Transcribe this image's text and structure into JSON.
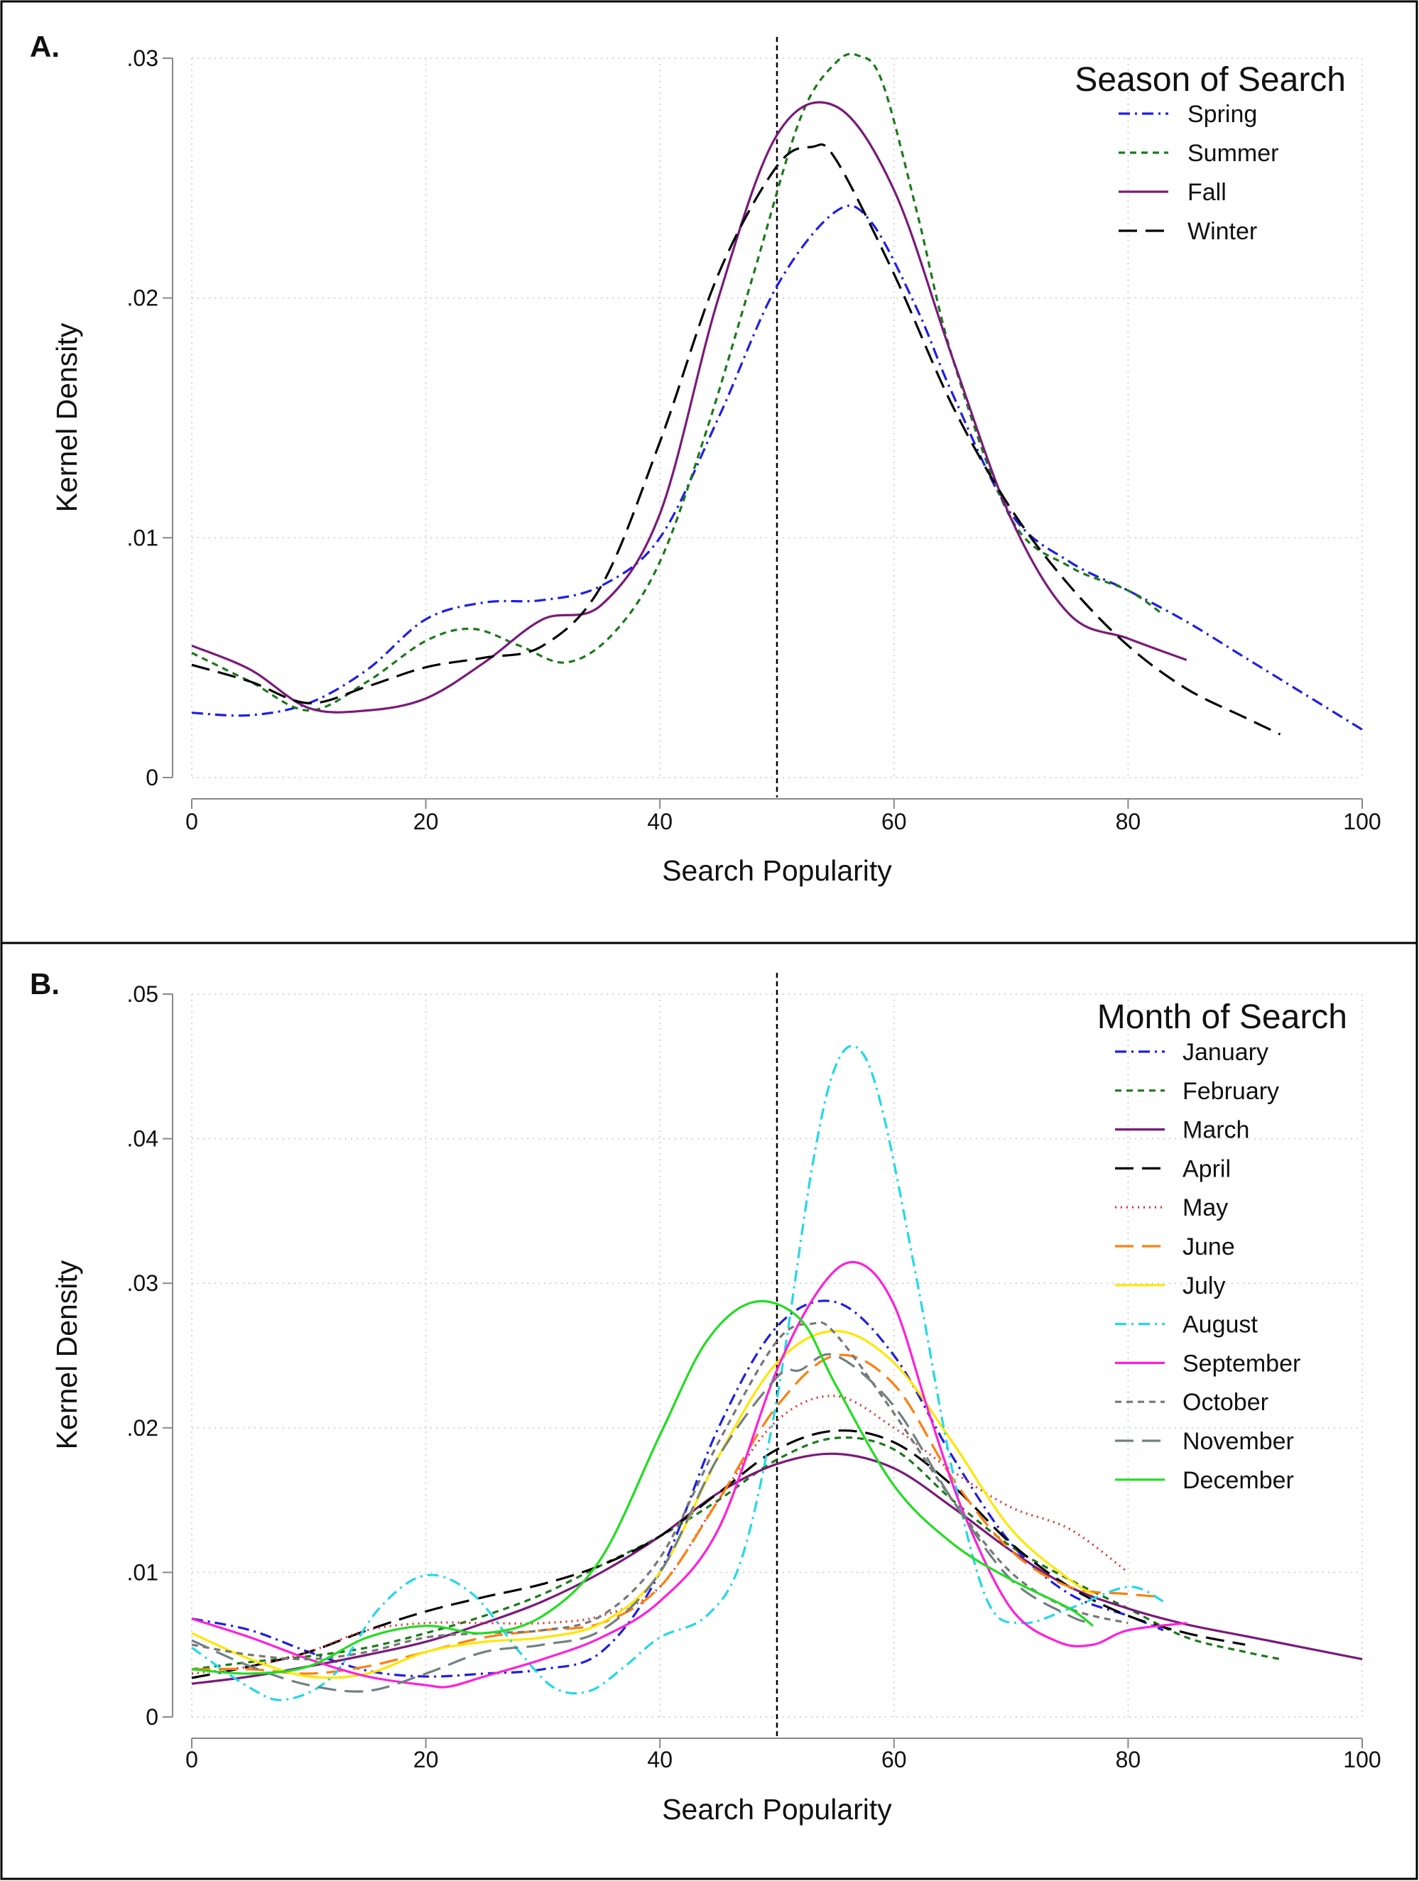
{
  "chart_data": [
    {
      "type": "line",
      "panel_label": "A.",
      "xlabel": "Search Popularity",
      "ylabel": "Kernel Density",
      "xlim": [
        0,
        100
      ],
      "ylim": [
        0,
        0.03
      ],
      "x_ticks": [
        0,
        20,
        40,
        60,
        80,
        100
      ],
      "x_tick_labels": [
        "0",
        "20",
        "40",
        "60",
        "80",
        "100"
      ],
      "y_ticks": [
        0,
        0.01,
        0.02,
        0.03
      ],
      "y_tick_labels": [
        "0",
        ".01",
        ".02",
        ".03"
      ],
      "grid": true,
      "reference_line_x": 50,
      "legend": {
        "title": "Season of Search",
        "position": "top-right"
      },
      "series": [
        {
          "name": "Spring",
          "color": "#1f1fe0",
          "dash": "dashdot",
          "x": [
            0,
            5,
            10,
            15,
            20,
            25,
            30,
            35,
            40,
            45,
            50,
            55,
            58,
            62,
            65,
            70,
            75,
            80,
            85,
            90,
            95,
            100
          ],
          "y": [
            0.0027,
            0.0026,
            0.0031,
            0.0045,
            0.0066,
            0.0073,
            0.0074,
            0.008,
            0.01,
            0.015,
            0.0205,
            0.0236,
            0.0232,
            0.0195,
            0.016,
            0.011,
            0.009,
            0.0078,
            0.0065,
            0.005,
            0.0035,
            0.002
          ]
        },
        {
          "name": "Summer",
          "color": "#1a7a1a",
          "dash": "short",
          "x": [
            0,
            5,
            10,
            15,
            20,
            24,
            28,
            32,
            36,
            40,
            44,
            48,
            52,
            55,
            57,
            59,
            62,
            65,
            70,
            75,
            80,
            83
          ],
          "y": [
            0.0052,
            0.004,
            0.0028,
            0.004,
            0.0057,
            0.0062,
            0.0055,
            0.0048,
            0.006,
            0.009,
            0.0145,
            0.021,
            0.0275,
            0.0298,
            0.0301,
            0.029,
            0.0235,
            0.0175,
            0.0108,
            0.0088,
            0.0078,
            0.0068
          ]
        },
        {
          "name": "Fall",
          "color": "#7a1a7a",
          "dash": "solid",
          "x": [
            0,
            5,
            10,
            15,
            20,
            25,
            30,
            35,
            40,
            45,
            50,
            55,
            60,
            65,
            70,
            75,
            80,
            85
          ],
          "y": [
            0.0055,
            0.0045,
            0.0029,
            0.0028,
            0.0033,
            0.0048,
            0.0066,
            0.0072,
            0.011,
            0.02,
            0.0268,
            0.028,
            0.0245,
            0.0175,
            0.0108,
            0.0068,
            0.0058,
            0.0049
          ]
        },
        {
          "name": "Winter",
          "color": "#000000",
          "dash": "long",
          "x": [
            0,
            5,
            10,
            15,
            20,
            25,
            30,
            35,
            40,
            45,
            50,
            53,
            55,
            60,
            65,
            70,
            75,
            80,
            85,
            90,
            93
          ],
          "y": [
            0.0047,
            0.004,
            0.0031,
            0.0038,
            0.0046,
            0.005,
            0.0055,
            0.008,
            0.014,
            0.021,
            0.0255,
            0.0263,
            0.0258,
            0.021,
            0.0155,
            0.0112,
            0.008,
            0.0055,
            0.0037,
            0.0025,
            0.0018
          ]
        }
      ]
    },
    {
      "type": "line",
      "panel_label": "B.",
      "xlabel": "Search Popularity",
      "ylabel": "Kernel Density",
      "xlim": [
        0,
        100
      ],
      "ylim": [
        0,
        0.05
      ],
      "x_ticks": [
        0,
        20,
        40,
        60,
        80,
        100
      ],
      "x_tick_labels": [
        "0",
        "20",
        "40",
        "60",
        "80",
        "100"
      ],
      "y_ticks": [
        0,
        0.01,
        0.02,
        0.03,
        0.04,
        0.05
      ],
      "y_tick_labels": [
        "0",
        ".01",
        ".02",
        ".03",
        ".04",
        ".05"
      ],
      "grid": true,
      "reference_line_x": 50,
      "legend": {
        "title": "Month of Search",
        "position": "top-right"
      },
      "series": [
        {
          "name": "January",
          "color": "#1f1fe0",
          "dash": "dashdot",
          "x": [
            0,
            5,
            10,
            15,
            20,
            25,
            30,
            35,
            40,
            45,
            50,
            55,
            60,
            65,
            70,
            75,
            80,
            83
          ],
          "y": [
            0.0068,
            0.006,
            0.0045,
            0.0032,
            0.0028,
            0.003,
            0.0033,
            0.0045,
            0.01,
            0.02,
            0.027,
            0.0287,
            0.025,
            0.018,
            0.012,
            0.0085,
            0.007,
            0.006
          ]
        },
        {
          "name": "February",
          "color": "#1a7a1a",
          "dash": "short",
          "x": [
            0,
            5,
            10,
            15,
            20,
            25,
            30,
            35,
            40,
            45,
            50,
            55,
            60,
            65,
            70,
            75,
            80,
            85,
            90,
            93
          ],
          "y": [
            0.0033,
            0.0038,
            0.0042,
            0.0048,
            0.0058,
            0.007,
            0.0085,
            0.0105,
            0.0125,
            0.015,
            0.0178,
            0.0193,
            0.0185,
            0.015,
            0.0118,
            0.0095,
            0.0075,
            0.0055,
            0.0045,
            0.004
          ]
        },
        {
          "name": "March",
          "color": "#7a1a7a",
          "dash": "solid",
          "x": [
            0,
            5,
            10,
            15,
            20,
            25,
            30,
            35,
            40,
            45,
            50,
            55,
            60,
            65,
            70,
            75,
            80,
            85,
            90,
            95,
            100
          ],
          "y": [
            0.0023,
            0.0028,
            0.0035,
            0.0043,
            0.0052,
            0.0065,
            0.008,
            0.01,
            0.0125,
            0.0155,
            0.0175,
            0.0182,
            0.0172,
            0.0145,
            0.0115,
            0.009,
            0.0075,
            0.0064,
            0.0056,
            0.0048,
            0.004
          ]
        },
        {
          "name": "April",
          "color": "#000000",
          "dash": "long",
          "x": [
            0,
            5,
            10,
            15,
            20,
            25,
            30,
            35,
            40,
            45,
            50,
            55,
            60,
            65,
            70,
            75,
            80,
            85,
            90
          ],
          "y": [
            0.0027,
            0.0035,
            0.0045,
            0.006,
            0.0073,
            0.0083,
            0.0092,
            0.0105,
            0.0125,
            0.0155,
            0.0185,
            0.0198,
            0.019,
            0.016,
            0.012,
            0.009,
            0.007,
            0.0058,
            0.005
          ]
        },
        {
          "name": "May",
          "color": "#e03030",
          "dash": "dot",
          "x": [
            0,
            5,
            10,
            15,
            20,
            25,
            30,
            35,
            40,
            45,
            50,
            55,
            60,
            65,
            70,
            75,
            80
          ],
          "y": [
            0.003,
            0.0035,
            0.0045,
            0.006,
            0.0065,
            0.0065,
            0.0065,
            0.007,
            0.009,
            0.015,
            0.0205,
            0.0222,
            0.02,
            0.017,
            0.0145,
            0.013,
            0.01
          ]
        },
        {
          "name": "June",
          "color": "#ff7f0e",
          "dash": "long",
          "x": [
            0,
            5,
            10,
            15,
            20,
            25,
            30,
            35,
            40,
            45,
            50,
            55,
            60,
            65,
            70,
            75,
            80,
            83
          ],
          "y": [
            0.0033,
            0.0033,
            0.003,
            0.0035,
            0.0045,
            0.0055,
            0.006,
            0.0065,
            0.009,
            0.015,
            0.0215,
            0.025,
            0.023,
            0.0165,
            0.0115,
            0.009,
            0.0085,
            0.0083
          ]
        },
        {
          "name": "July",
          "color": "#ffe600",
          "dash": "solid",
          "x": [
            0,
            5,
            10,
            15,
            20,
            25,
            30,
            35,
            40,
            45,
            50,
            55,
            60,
            65,
            70,
            75,
            77
          ],
          "y": [
            0.0058,
            0.004,
            0.0028,
            0.003,
            0.0045,
            0.0052,
            0.0055,
            0.0065,
            0.01,
            0.018,
            0.0245,
            0.0267,
            0.0245,
            0.019,
            0.013,
            0.0095,
            0.0085
          ]
        },
        {
          "name": "August",
          "color": "#22d8e8",
          "dash": "dashdot",
          "x": [
            0,
            5,
            8,
            12,
            16,
            20,
            24,
            28,
            31,
            34,
            37,
            40,
            44,
            47,
            50,
            53,
            55,
            57,
            59,
            62,
            65,
            68,
            71,
            75,
            80,
            83
          ],
          "y": [
            0.0048,
            0.002,
            0.0012,
            0.0028,
            0.0075,
            0.0098,
            0.0085,
            0.0045,
            0.002,
            0.0018,
            0.0035,
            0.0055,
            0.007,
            0.011,
            0.022,
            0.038,
            0.045,
            0.0462,
            0.042,
            0.03,
            0.017,
            0.008,
            0.0065,
            0.0075,
            0.009,
            0.008
          ]
        },
        {
          "name": "September",
          "color": "#ff1fd8",
          "dash": "solid",
          "x": [
            0,
            5,
            10,
            15,
            20,
            22,
            25,
            30,
            35,
            40,
            45,
            50,
            54,
            57,
            60,
            63,
            66,
            70,
            74,
            77,
            80,
            85
          ],
          "y": [
            0.0068,
            0.0055,
            0.004,
            0.0028,
            0.0022,
            0.0021,
            0.0028,
            0.004,
            0.0055,
            0.008,
            0.013,
            0.024,
            0.03,
            0.0314,
            0.0285,
            0.021,
            0.014,
            0.0075,
            0.0052,
            0.005,
            0.006,
            0.0065
          ]
        },
        {
          "name": "October",
          "color": "#777777",
          "dash": "short",
          "x": [
            0,
            5,
            10,
            15,
            20,
            25,
            30,
            35,
            40,
            45,
            50,
            53,
            55,
            60,
            65,
            70,
            75,
            80
          ],
          "y": [
            0.005,
            0.0043,
            0.004,
            0.0045,
            0.0055,
            0.0058,
            0.006,
            0.007,
            0.011,
            0.019,
            0.026,
            0.0272,
            0.0265,
            0.021,
            0.015,
            0.01,
            0.0075,
            0.0065
          ]
        },
        {
          "name": "November",
          "color": "#708080",
          "dash": "long",
          "x": [
            0,
            5,
            10,
            15,
            20,
            25,
            30,
            35,
            40,
            45,
            50,
            52,
            55,
            60,
            65,
            70,
            75,
            77
          ],
          "y": [
            0.0053,
            0.0035,
            0.0022,
            0.0018,
            0.003,
            0.0045,
            0.005,
            0.006,
            0.01,
            0.018,
            0.0235,
            0.024,
            0.025,
            0.0215,
            0.015,
            0.0095,
            0.007,
            0.0065
          ]
        },
        {
          "name": "December",
          "color": "#22dd22",
          "dash": "solid",
          "x": [
            0,
            5,
            10,
            15,
            20,
            25,
            30,
            35,
            40,
            44,
            48,
            52,
            55,
            60,
            65,
            70,
            75,
            77
          ],
          "y": [
            0.0033,
            0.003,
            0.0035,
            0.0055,
            0.0063,
            0.0058,
            0.007,
            0.011,
            0.0195,
            0.026,
            0.0287,
            0.0275,
            0.023,
            0.016,
            0.012,
            0.0095,
            0.0075,
            0.0063
          ]
        }
      ]
    }
  ]
}
